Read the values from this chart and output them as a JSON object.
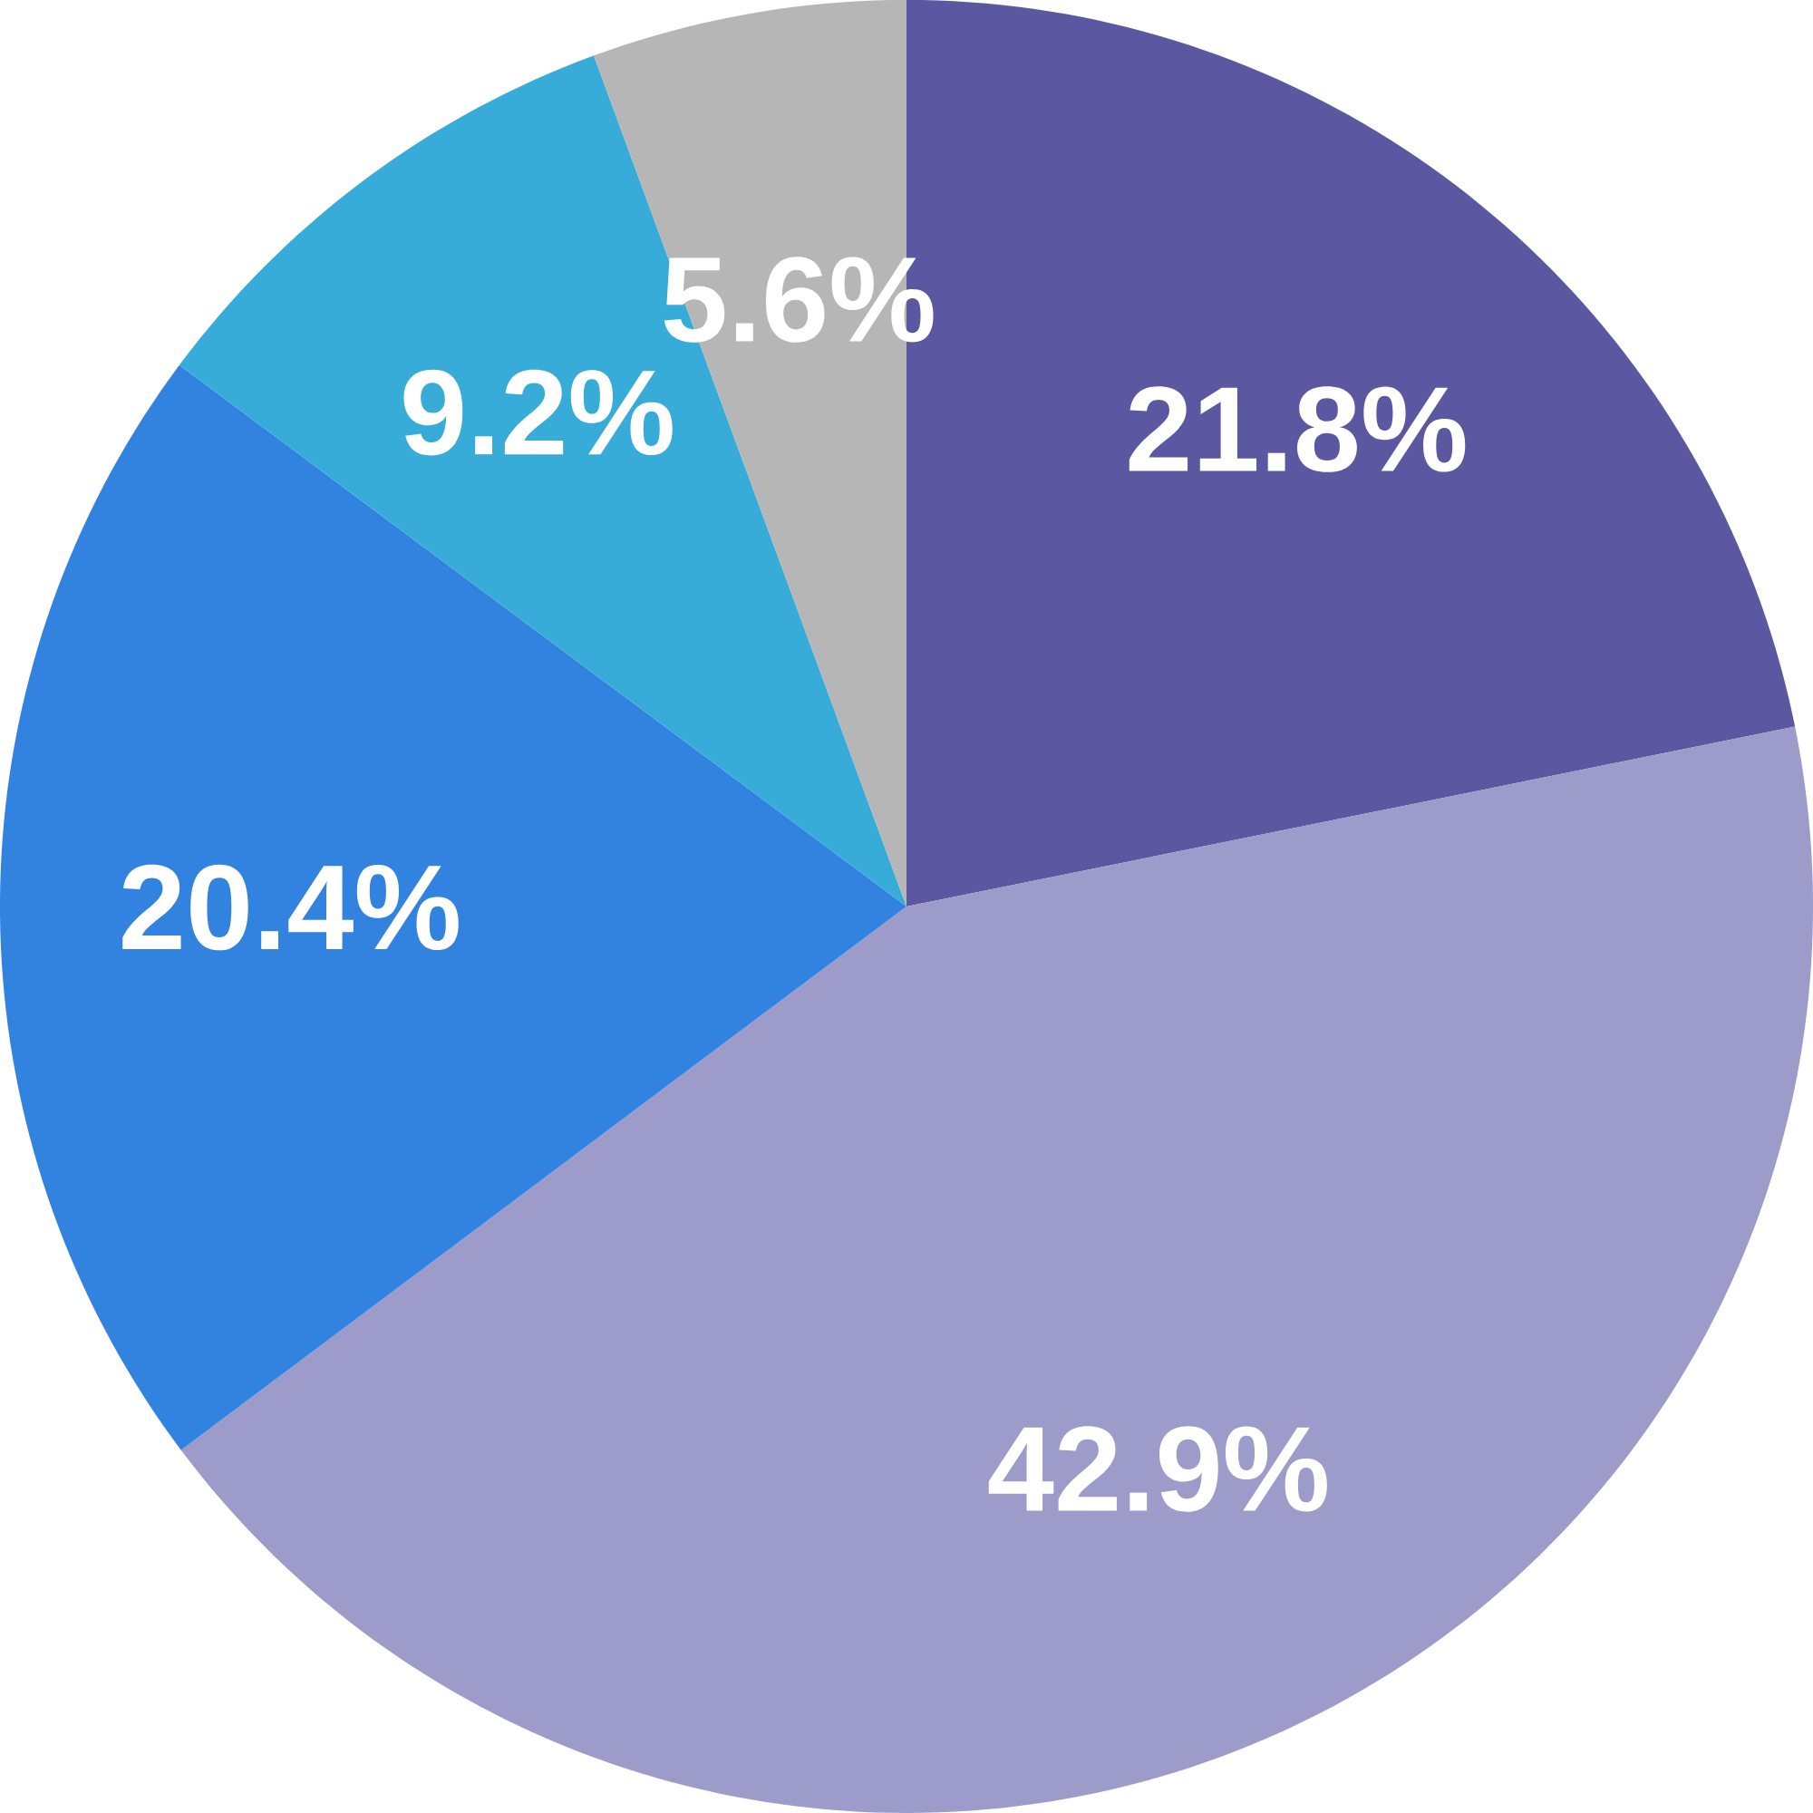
{
  "chart_data": {
    "type": "pie",
    "categories": [
      null,
      null,
      null,
      null,
      null
    ],
    "values": [
      21.8,
      42.9,
      20.4,
      9.2,
      5.6
    ],
    "colors": [
      "#5b57a0",
      "#9d9bc9",
      "#3282df",
      "#38acd9",
      "#b6b6b6"
    ],
    "value_labels": [
      "21.8%",
      "42.9%",
      "20.4%",
      "9.2%",
      "5.6%"
    ]
  }
}
